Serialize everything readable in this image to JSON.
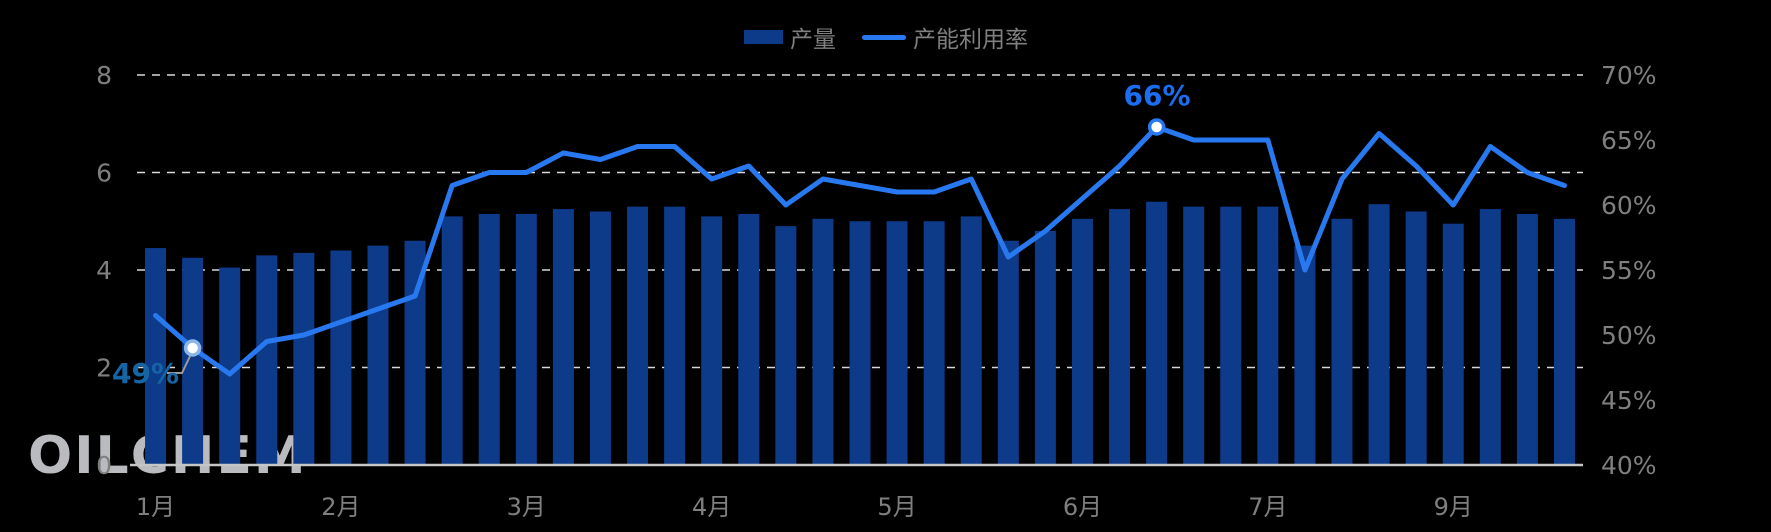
{
  "legend": {
    "items": [
      {
        "label": "产量",
        "type": "bar",
        "color": "#0d3b8a"
      },
      {
        "label": "产能利用率",
        "type": "line",
        "color": "#2879f0"
      }
    ]
  },
  "watermark": "OILCHEM",
  "colors": {
    "background": "#000000",
    "bar": "#0d3b8a",
    "line": "#2879f0",
    "axis_text": "#7f7f7f",
    "gridline": "#d9d9d9",
    "baseline": "#c6c6c6",
    "leader": "#9a9a9a",
    "annotation_49": "#1565a5",
    "annotation_66": "#1b6ef0"
  },
  "chart_data": {
    "type": "bar+line combo, weekly points",
    "title": "",
    "n_points": 39,
    "x_tick_labels": [
      "1月",
      "2月",
      "3月",
      "4月",
      "5月",
      "6月",
      "7月",
      "9月"
    ],
    "x_tick_indices": [
      0,
      5,
      10,
      15,
      20,
      25,
      30,
      35
    ],
    "series": [
      {
        "name": "产量",
        "type": "bar",
        "y_axis": "left",
        "values": [
          4.45,
          4.25,
          4.05,
          4.3,
          4.35,
          4.4,
          4.5,
          4.6,
          5.1,
          5.15,
          5.15,
          5.25,
          5.2,
          5.3,
          5.3,
          5.1,
          5.15,
          4.9,
          5.05,
          5.0,
          5.0,
          5.0,
          5.1,
          4.6,
          4.8,
          5.05,
          5.25,
          5.4,
          5.3,
          5.3,
          5.3,
          4.5,
          5.05,
          5.35,
          5.2,
          4.95,
          5.25,
          5.15,
          5.05
        ]
      },
      {
        "name": "产能利用率",
        "type": "line",
        "y_axis": "right",
        "unit": "%",
        "values": [
          51.5,
          49,
          47,
          49.5,
          50,
          51,
          52,
          53,
          61.5,
          62.5,
          62.5,
          64,
          63.5,
          64.5,
          64.5,
          62,
          63,
          60,
          62,
          61.5,
          61,
          61,
          62,
          56,
          58,
          60.5,
          63,
          66,
          65,
          65,
          65,
          55,
          62,
          65.5,
          63,
          60,
          64.5,
          62.5,
          61.5
        ]
      }
    ],
    "left_axis": {
      "min": 0,
      "max": 8,
      "ticks": [
        8,
        6,
        4,
        2,
        0
      ]
    },
    "right_axis": {
      "min": 40,
      "max": 70,
      "ticks": [
        "70%",
        "65%",
        "60%",
        "55%",
        "50%",
        "45%",
        "40%"
      ]
    },
    "annotations": [
      {
        "series": "产能利用率",
        "index": 1,
        "label": "49%",
        "marker_ring": "#8cb5e8"
      },
      {
        "series": "产能利用率",
        "index": 27,
        "label": "66%",
        "marker_ring": "#2879f0"
      }
    ],
    "legend_position": "top-center",
    "grid": "horizontal-dashed"
  }
}
